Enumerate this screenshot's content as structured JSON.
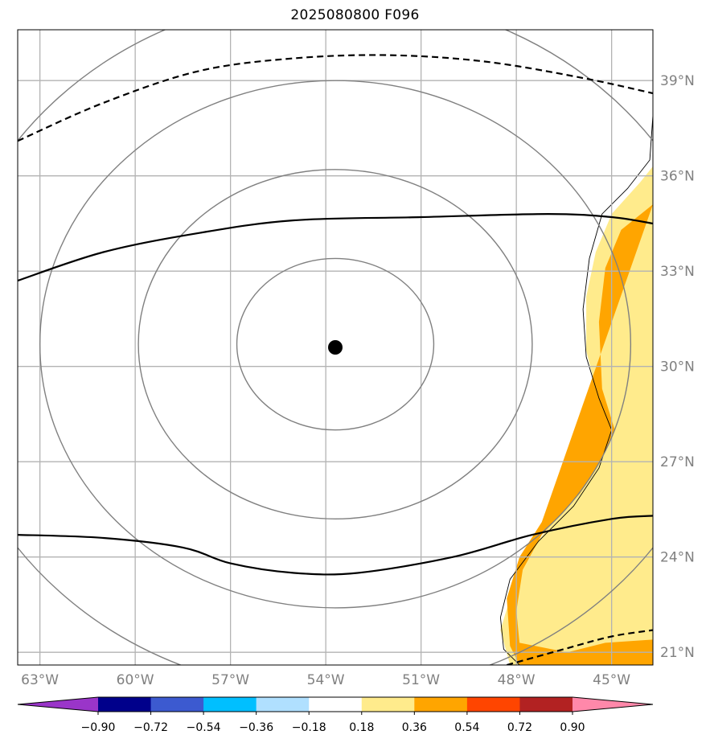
{
  "title": "2025080800 F096",
  "map": {
    "lon_range": [
      -63.7,
      -43.7
    ],
    "lat_range": [
      20.6,
      40.6
    ],
    "lon_ticks": [
      {
        "value": -63,
        "label": "63°W"
      },
      {
        "value": -60,
        "label": "60°W"
      },
      {
        "value": -57,
        "label": "57°W"
      },
      {
        "value": -54,
        "label": "54°W"
      },
      {
        "value": -51,
        "label": "51°W"
      },
      {
        "value": -48,
        "label": "48°W"
      },
      {
        "value": -45,
        "label": "45°W"
      }
    ],
    "lat_ticks": [
      {
        "value": 39,
        "label": "39°N"
      },
      {
        "value": 36,
        "label": "36°N"
      },
      {
        "value": 33,
        "label": "33°N"
      },
      {
        "value": 30,
        "label": "30°N"
      },
      {
        "value": 27,
        "label": "27°N"
      },
      {
        "value": 24,
        "label": "24°N"
      },
      {
        "value": 21,
        "label": "21°N"
      }
    ],
    "gridlines": true,
    "center_marker": {
      "lon": -53.7,
      "lat": 30.6
    },
    "range_rings_deg": [
      {
        "rx": 3.1,
        "ry": 2.7
      },
      {
        "rx": 6.2,
        "ry": 5.5
      },
      {
        "rx": 9.3,
        "ry": 8.3
      },
      {
        "rx": 12.3,
        "ry": 11.0
      }
    ],
    "ring_center": {
      "lon": -53.7,
      "lat": 30.7
    },
    "contours": [
      {
        "style": "solid",
        "points": [
          [
            -63.7,
            32.7
          ],
          [
            -61,
            33.6
          ],
          [
            -58,
            34.2
          ],
          [
            -55,
            34.6
          ],
          [
            -51,
            34.7
          ],
          [
            -47,
            34.8
          ],
          [
            -45,
            34.7
          ],
          [
            -43.7,
            34.5
          ]
        ]
      },
      {
        "style": "solid",
        "points": [
          [
            -63.7,
            24.7
          ],
          [
            -61,
            24.6
          ],
          [
            -58.5,
            24.3
          ],
          [
            -57,
            23.8
          ],
          [
            -55,
            23.5
          ],
          [
            -53,
            23.5
          ],
          [
            -50,
            24.0
          ],
          [
            -47.5,
            24.7
          ],
          [
            -45,
            25.2
          ],
          [
            -43.7,
            25.3
          ]
        ]
      },
      {
        "style": "dashed",
        "points": [
          [
            -63.7,
            37.1
          ],
          [
            -61,
            38.3
          ],
          [
            -58,
            39.3
          ],
          [
            -55,
            39.7
          ],
          [
            -52,
            39.8
          ],
          [
            -49,
            39.6
          ],
          [
            -46,
            39.1
          ],
          [
            -43.7,
            38.6
          ]
        ]
      },
      {
        "style": "dashed",
        "points": [
          [
            -48.3,
            20.6
          ],
          [
            -46.5,
            21.1
          ],
          [
            -45,
            21.5
          ],
          [
            -43.7,
            21.7
          ]
        ]
      }
    ],
    "anomaly_fill": {
      "category_outer": "0.18 to 0.36",
      "category_inner": "0.36 to 0.54",
      "region_outer": [
        [
          -43.7,
          36.3
        ],
        [
          -44.1,
          35.8
        ],
        [
          -45,
          34.8
        ],
        [
          -45.5,
          33.6
        ],
        [
          -45.8,
          32.2
        ],
        [
          -45.8,
          30.5
        ],
        [
          -45.5,
          29.3
        ],
        [
          -45,
          28.3
        ],
        [
          -45.4,
          27.4
        ],
        [
          -45.8,
          26.4
        ],
        [
          -46.7,
          25.3
        ],
        [
          -47.7,
          24.0
        ],
        [
          -48.2,
          22.7
        ],
        [
          -48.5,
          21.7
        ],
        [
          -48.2,
          20.6
        ],
        [
          -43.7,
          20.6
        ]
      ],
      "region_inner": [
        [
          -43.7,
          35.1
        ],
        [
          -44.7,
          34.3
        ],
        [
          -45.2,
          33.1
        ],
        [
          -45.4,
          31.4
        ],
        [
          -45.3,
          29.3
        ],
        [
          -44.9,
          28.0
        ],
        [
          -45.3,
          27.1
        ],
        [
          -46,
          26.0
        ],
        [
          -47.2,
          24.7
        ],
        [
          -47.8,
          23.6
        ],
        [
          -48.0,
          22.3
        ],
        [
          -47.9,
          21.3
        ],
        [
          -46.4,
          21.0
        ],
        [
          -45.2,
          21.3
        ],
        [
          -43.7,
          21.4
        ],
        [
          -43.7,
          20.6
        ],
        [
          -47.9,
          20.6
        ],
        [
          -48.2,
          21.2
        ],
        [
          -48.3,
          22.7
        ],
        [
          -47.9,
          24.0
        ],
        [
          -47.2,
          25.1
        ]
      ],
      "coast": [
        [
          -43.7,
          37.9
        ],
        [
          -43.8,
          36.5
        ],
        [
          -44.5,
          35.6
        ],
        [
          -45.3,
          34.8
        ],
        [
          -45.7,
          33.4
        ],
        [
          -45.9,
          31.8
        ],
        [
          -45.8,
          30.3
        ],
        [
          -45.4,
          29.0
        ],
        [
          -45.0,
          28.0
        ],
        [
          -45.4,
          26.8
        ],
        [
          -46.2,
          25.6
        ],
        [
          -47.3,
          24.5
        ],
        [
          -48.2,
          23.3
        ],
        [
          -48.5,
          22.1
        ],
        [
          -48.4,
          21.1
        ],
        [
          -47.9,
          20.6
        ]
      ]
    }
  },
  "colorbar": {
    "colors": [
      "#9a35c9",
      "#00008b",
      "#3c5ad0",
      "#00bfff",
      "#b0e0ff",
      "#ffffff",
      "#ffeb8c",
      "#ffa500",
      "#ff4500",
      "#b22222",
      "#ff88aa"
    ],
    "ticks": [
      "−0.90",
      "−0.72",
      "−0.54",
      "−0.36",
      "−0.18",
      "0.18",
      "0.36",
      "0.54",
      "0.72",
      "0.90"
    ]
  },
  "colors": {
    "grid": "#b3b3b3",
    "rings": "#808080",
    "contour": "#000000",
    "fill_outer": "#ffeb8c",
    "fill_inner": "#ffa500"
  }
}
